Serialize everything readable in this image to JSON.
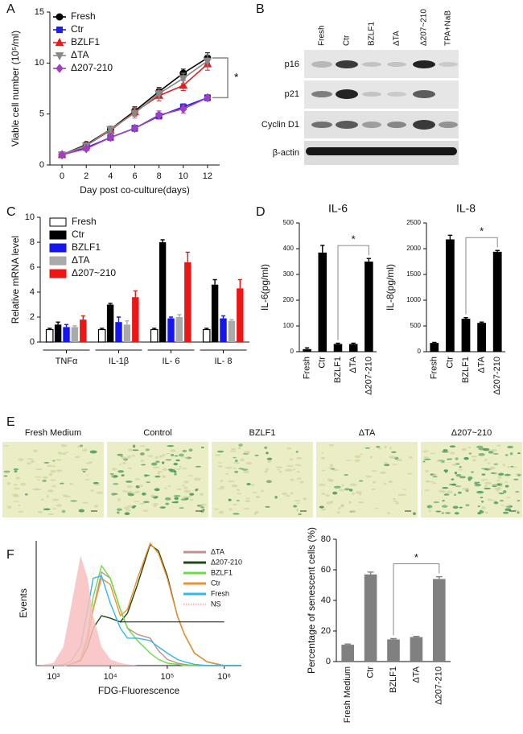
{
  "chart_data": [
    {
      "type": "line",
      "panel": "A",
      "x": [
        0,
        2,
        4,
        6,
        8,
        10,
        12
      ],
      "xlim": [
        -1,
        13
      ],
      "xticks": [
        0,
        2,
        4,
        6,
        8,
        10,
        12
      ],
      "ylim": [
        0,
        15
      ],
      "yticks": [
        0,
        5,
        10,
        15
      ],
      "xlabel": "Day post co-culture(days)",
      "ylabel": "Viable cell number (10⁵/ml)",
      "legend": "upper left",
      "annotation": "*",
      "series": [
        {
          "name": "Fresh",
          "color": "#000000",
          "marker": "circle",
          "values": [
            1,
            2,
            3.5,
            5.3,
            7.2,
            9,
            10.5
          ],
          "errors": [
            0.1,
            0.2,
            0.3,
            0.4,
            0.4,
            0.4,
            0.5
          ]
        },
        {
          "name": "Ctr",
          "color": "#1f1fe0",
          "marker": "square",
          "values": [
            1,
            1.7,
            2.7,
            3.6,
            4.8,
            5.7,
            6.6
          ],
          "errors": [
            0.1,
            0.1,
            0.2,
            0.3,
            0.3,
            0.3,
            0.3
          ]
        },
        {
          "name": "BZLF1",
          "color": "#e02020",
          "marker": "triangle",
          "values": [
            1,
            1.9,
            3.4,
            5.2,
            6.8,
            7.8,
            9.9
          ],
          "errors": [
            0.1,
            0.2,
            0.3,
            0.4,
            0.5,
            0.5,
            0.6
          ]
        },
        {
          "name": "ΔTA",
          "color": "#888888",
          "marker": "triangle-down",
          "values": [
            1,
            1.9,
            3.5,
            5.1,
            7.0,
            8.5,
            10.2
          ],
          "errors": [
            0.1,
            0.2,
            0.3,
            0.5,
            0.5,
            0.5,
            0.6
          ]
        },
        {
          "name": "Δ207-210",
          "color": "#a040c0",
          "marker": "diamond",
          "values": [
            1,
            1.6,
            2.7,
            3.6,
            4.9,
            5.5,
            6.6
          ],
          "errors": [
            0.1,
            0.1,
            0.2,
            0.3,
            0.4,
            0.4,
            0.3
          ]
        }
      ]
    },
    {
      "type": "bar",
      "panel": "C",
      "categories": [
        "TNFα",
        "IL-1β",
        "IL- 6",
        "IL- 8"
      ],
      "ylim": [
        0,
        10
      ],
      "yticks": [
        0,
        2,
        4,
        6,
        8,
        10
      ],
      "ylabel": "Relative mRNA level",
      "legend": "upper left",
      "series": [
        {
          "name": "Fresh",
          "color": "#ffffff",
          "edgecolor": "#000000",
          "values": [
            1,
            1,
            1,
            1
          ],
          "errors": [
            0.1,
            0.1,
            0.1,
            0.1
          ]
        },
        {
          "name": "Ctr",
          "color": "#000000",
          "values": [
            1.4,
            3.0,
            8.0,
            4.6
          ],
          "errors": [
            0.2,
            0.1,
            0.2,
            0.4
          ]
        },
        {
          "name": "BZLF1",
          "color": "#1515ee",
          "values": [
            1.2,
            1.6,
            1.9,
            1.9
          ],
          "errors": [
            0.2,
            0.4,
            0.1,
            0.2
          ]
        },
        {
          "name": "ΔTA",
          "color": "#aaaaaa",
          "values": [
            1.2,
            1.4,
            2.0,
            1.7
          ],
          "errors": [
            0.1,
            0.3,
            0.2,
            0.1
          ]
        },
        {
          "name": "Δ207~210",
          "color": "#ee1515",
          "values": [
            1.8,
            3.6,
            6.4,
            4.3
          ],
          "errors": [
            0.3,
            0.5,
            0.8,
            0.7
          ]
        }
      ]
    },
    {
      "type": "bar",
      "panel": "D",
      "title": "IL-6",
      "categories": [
        "Fresh",
        "Ctr",
        "BZLF1",
        "ΔTA",
        "Δ207-210"
      ],
      "values": [
        10,
        385,
        30,
        30,
        350
      ],
      "errors": [
        5,
        28,
        3,
        3,
        12
      ],
      "color": "#000000",
      "ylim": [
        0,
        500
      ],
      "yticks": [
        0,
        100,
        200,
        300,
        400,
        500
      ],
      "ylabel": "IL-6(pg/ml)",
      "annotation": "*"
    },
    {
      "type": "bar",
      "title": "IL-8",
      "categories": [
        "Fresh",
        "Ctr",
        "BZLF1",
        "ΔTA",
        "Δ207-210"
      ],
      "values": [
        170,
        2180,
        640,
        560,
        1940
      ],
      "errors": [
        10,
        80,
        20,
        15,
        25
      ],
      "color": "#000000",
      "ylim": [
        0,
        2500
      ],
      "yticks": [
        0,
        500,
        1000,
        1500,
        2000,
        2500
      ],
      "ylabel": "IL-8(pg/ml)",
      "annotation": "*"
    },
    {
      "type": "line",
      "panel": "F",
      "xscale": "log",
      "x": [
        500,
        1000,
        1500,
        2000,
        3000,
        4000,
        5000,
        7000,
        10000,
        15000,
        20000,
        30000,
        50000,
        70000,
        100000,
        150000,
        200000,
        300000,
        500000,
        1000000,
        2000000
      ],
      "xlim": [
        500,
        2000000
      ],
      "xticks": [
        {
          "value": 1000,
          "label": "10³"
        },
        {
          "value": 10000,
          "label": "10⁴"
        },
        {
          "value": 100000,
          "label": "10⁵"
        },
        {
          "value": 1000000,
          "label": "10⁶"
        }
      ],
      "ylim": [
        0,
        100
      ],
      "xlabel": "FDG-Fluorescence",
      "ylabel": "Events",
      "legend": "upper right",
      "gate": {
        "x": [
          15000,
          1000000
        ],
        "y": 35
      },
      "series": [
        {
          "name": "ΔTA",
          "color": "#c09090",
          "values": [
            0,
            0,
            0,
            1,
            5,
            20,
            45,
            75,
            70,
            45,
            30,
            25,
            22,
            12,
            5,
            2,
            1,
            0,
            0,
            0,
            0
          ]
        },
        {
          "name": "Δ207-210",
          "color": "#1e4a10",
          "values": [
            0,
            0,
            0,
            1,
            4,
            15,
            30,
            40,
            38,
            35,
            42,
            65,
            97,
            92,
            72,
            40,
            25,
            10,
            3,
            0,
            0
          ]
        },
        {
          "name": "BZLF1",
          "color": "#66e040",
          "values": [
            0,
            0,
            0,
            1,
            5,
            25,
            55,
            80,
            70,
            45,
            30,
            20,
            10,
            5,
            2,
            1,
            0,
            0,
            0,
            0,
            0
          ]
        },
        {
          "name": "Ctr",
          "color": "#f09030",
          "values": [
            0,
            0,
            0,
            1,
            5,
            20,
            45,
            70,
            65,
            40,
            45,
            70,
            98,
            90,
            70,
            40,
            25,
            10,
            3,
            0,
            0
          ]
        },
        {
          "name": "Fresh",
          "color": "#30b8f0",
          "values": [
            0,
            0,
            1,
            3,
            15,
            45,
            70,
            72,
            50,
            30,
            22,
            22,
            20,
            15,
            10,
            5,
            3,
            1,
            0,
            0,
            0
          ]
        },
        {
          "name": "NS",
          "color": "#f8c0c0",
          "fill": true,
          "values": [
            0,
            2,
            15,
            45,
            88,
            70,
            40,
            15,
            5,
            2,
            1,
            0,
            0,
            0,
            0,
            0,
            0,
            0,
            0,
            0,
            0
          ]
        }
      ]
    },
    {
      "type": "bar",
      "categories": [
        "Fresh Medium",
        "Ctr",
        "BZLF1",
        "ΔTA",
        "Δ207-210"
      ],
      "values": [
        11,
        57,
        14.5,
        16,
        54
      ],
      "errors": [
        0.5,
        1.5,
        0.5,
        0.5,
        1.5
      ],
      "color": "#808080",
      "ylim": [
        0,
        80
      ],
      "yticks": [
        0,
        20,
        40,
        60,
        80
      ],
      "ylabel": "Percentage of senescent cells (%)",
      "annotation": "*"
    }
  ],
  "blot": {
    "panel": "B",
    "lanes": [
      "Fresh",
      "Ctr",
      "BZLF1",
      "ΔTA",
      "Δ207~210",
      "TPA+NaB"
    ],
    "rows": [
      "p16",
      "p21",
      "Cyclin D1",
      "β-actin"
    ]
  },
  "micrographs": {
    "panel": "E",
    "labels": [
      "Fresh Medium",
      "Control",
      "BZLF1",
      "ΔTA",
      "Δ207~210"
    ]
  }
}
